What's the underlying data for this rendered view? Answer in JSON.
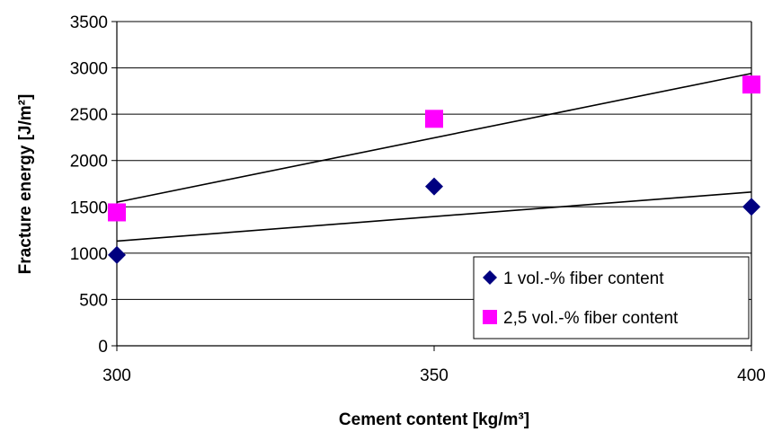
{
  "chart_data": {
    "type": "scatter",
    "title": "",
    "xlabel": "Cement content [kg/m³]",
    "ylabel": "Fracture energy [J/m²]",
    "xlim": [
      300,
      400
    ],
    "ylim": [
      0,
      3500
    ],
    "x_ticks": [
      300,
      350,
      400
    ],
    "y_ticks": [
      0,
      500,
      1000,
      1500,
      2000,
      2500,
      3000,
      3500
    ],
    "grid": "horizontal",
    "legend_position": "lower-right",
    "series": [
      {
        "name": "1 vol.-% fiber content",
        "marker": "diamond",
        "color": "#000080",
        "x": [
          300,
          350,
          400
        ],
        "y": [
          980,
          1720,
          1500
        ],
        "trendline": {
          "type": "linear",
          "from": [
            300,
            1130
          ],
          "to": [
            400,
            1660
          ]
        }
      },
      {
        "name": "2,5 vol.-% fiber content",
        "marker": "square",
        "color": "#ff00ff",
        "x": [
          300,
          350,
          400
        ],
        "y": [
          1440,
          2450,
          2820
        ],
        "trendline": {
          "type": "linear",
          "from": [
            300,
            1550
          ],
          "to": [
            400,
            2940
          ]
        }
      }
    ]
  }
}
